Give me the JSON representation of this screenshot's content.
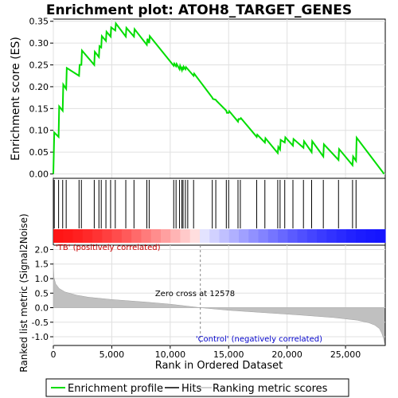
{
  "chart_data": {
    "type": "line",
    "title": "Enrichment plot: ATOH8_TARGET_GENES",
    "es_panel": {
      "ylabel": "Enrichment score (ES)",
      "ylim": [
        -0.01,
        0.355
      ],
      "yticks": [
        0.0,
        0.05,
        0.1,
        0.15,
        0.2,
        0.25,
        0.3,
        0.35
      ],
      "ytick_labels": [
        "0.00",
        "0.05",
        "0.10",
        "0.15",
        "0.20",
        "0.25",
        "0.30",
        "0.35"
      ],
      "series": [
        {
          "name": "Enrichment profile",
          "color": "#00dd00",
          "x": [
            0,
            80,
            450,
            500,
            800,
            850,
            1100,
            1150,
            2200,
            2250,
            2400,
            2450,
            3500,
            3550,
            3900,
            3950,
            4100,
            4150,
            4500,
            4550,
            4900,
            4950,
            5300,
            5350,
            6200,
            6250,
            6900,
            6950,
            8000,
            8050,
            8200,
            8250,
            10300,
            10350,
            10500,
            10550,
            10800,
            10850,
            11000,
            11050,
            11100,
            11150,
            11300,
            11350,
            12000,
            12050,
            13600,
            13650,
            13900,
            13950,
            14800,
            14850,
            15000,
            15050,
            15800,
            15850,
            16000,
            16050,
            17400,
            17450,
            18100,
            18150,
            19200,
            19250,
            19400,
            19450,
            19800,
            19850,
            20500,
            20550,
            21400,
            21450,
            22100,
            22150,
            23100,
            23150,
            24400,
            24450,
            25600,
            25650,
            25900,
            25950,
            28300
          ],
          "y": [
            0.0,
            0.095,
            0.085,
            0.155,
            0.145,
            0.205,
            0.195,
            0.243,
            0.225,
            0.25,
            0.25,
            0.283,
            0.25,
            0.28,
            0.268,
            0.293,
            0.29,
            0.316,
            0.305,
            0.326,
            0.315,
            0.336,
            0.329,
            0.345,
            0.315,
            0.335,
            0.315,
            0.332,
            0.296,
            0.31,
            0.3,
            0.316,
            0.248,
            0.253,
            0.247,
            0.252,
            0.24,
            0.248,
            0.238,
            0.246,
            0.238,
            0.246,
            0.24,
            0.245,
            0.225,
            0.23,
            0.175,
            0.172,
            0.17,
            0.168,
            0.145,
            0.14,
            0.14,
            0.144,
            0.12,
            0.126,
            0.126,
            0.128,
            0.085,
            0.09,
            0.072,
            0.082,
            0.048,
            0.062,
            0.056,
            0.078,
            0.072,
            0.084,
            0.065,
            0.08,
            0.06,
            0.075,
            0.05,
            0.075,
            0.04,
            0.068,
            0.032,
            0.057,
            0.02,
            0.04,
            0.03,
            0.083,
            0.0
          ]
        }
      ]
    },
    "hits": {
      "name": "Hits",
      "positions": [
        80,
        450,
        800,
        1100,
        2200,
        2400,
        3500,
        3900,
        4100,
        4500,
        4900,
        5300,
        6200,
        6900,
        8000,
        8200,
        10300,
        10500,
        10800,
        11000,
        11100,
        11300,
        11500,
        12000,
        13600,
        13900,
        14800,
        15000,
        15800,
        16000,
        17400,
        18100,
        19200,
        19400,
        19800,
        20500,
        21400,
        22100,
        23100,
        24400,
        25600,
        25900
      ]
    },
    "metric_panel": {
      "name": "Ranking metric scores",
      "xlabel": "Rank in Ordered Dataset",
      "ylabel": "Ranked list metric (Signal2Noise)",
      "ylim": [
        -1.3,
        2.15
      ],
      "yticks": [
        -1.0,
        -0.5,
        0.0,
        0.5,
        1.0,
        1.5,
        2.0
      ],
      "ytick_labels": [
        "-1.0",
        "-0.5",
        "0.0",
        "0.5",
        "1.0",
        "1.5",
        "2.0"
      ],
      "profile_x": [
        0,
        50,
        200,
        500,
        1000,
        2000,
        3000,
        5000,
        8000,
        10000,
        12578,
        15000,
        18000,
        21000,
        24000,
        26000,
        27000,
        27500,
        27900,
        28100,
        28250,
        28350
      ],
      "profile_y": [
        1.55,
        1.05,
        0.82,
        0.66,
        0.54,
        0.43,
        0.36,
        0.28,
        0.19,
        0.12,
        0.0,
        -0.09,
        -0.17,
        -0.25,
        -0.34,
        -0.43,
        -0.52,
        -0.6,
        -0.72,
        -0.88,
        -1.05,
        -1.25
      ],
      "positive_label": "'TB' (positively correlated)",
      "negative_label": "'Control' (negatively correlated)",
      "zero_cross_label": "Zero cross at 12578",
      "zero_cross": 12578
    },
    "xlim": [
      0,
      28400
    ],
    "xticks": [
      0,
      5000,
      10000,
      15000,
      20000,
      25000
    ],
    "xtick_labels": [
      "0",
      "5,000",
      "10,000",
      "15,000",
      "20,000",
      "25,000"
    ],
    "legend": {
      "placement": "bottom",
      "items": [
        {
          "label": "Enrichment profile",
          "color": "#00dd00"
        },
        {
          "label": "Hits",
          "color": "#000000"
        },
        {
          "label": "Ranking metric scores",
          "color": "#c0c0c0"
        }
      ]
    },
    "colors": {
      "positive_text": "#cc0000",
      "negative_text": "#0000cc",
      "metric_fill": "#c0c0c0",
      "grid": "#e0e0e0"
    }
  }
}
